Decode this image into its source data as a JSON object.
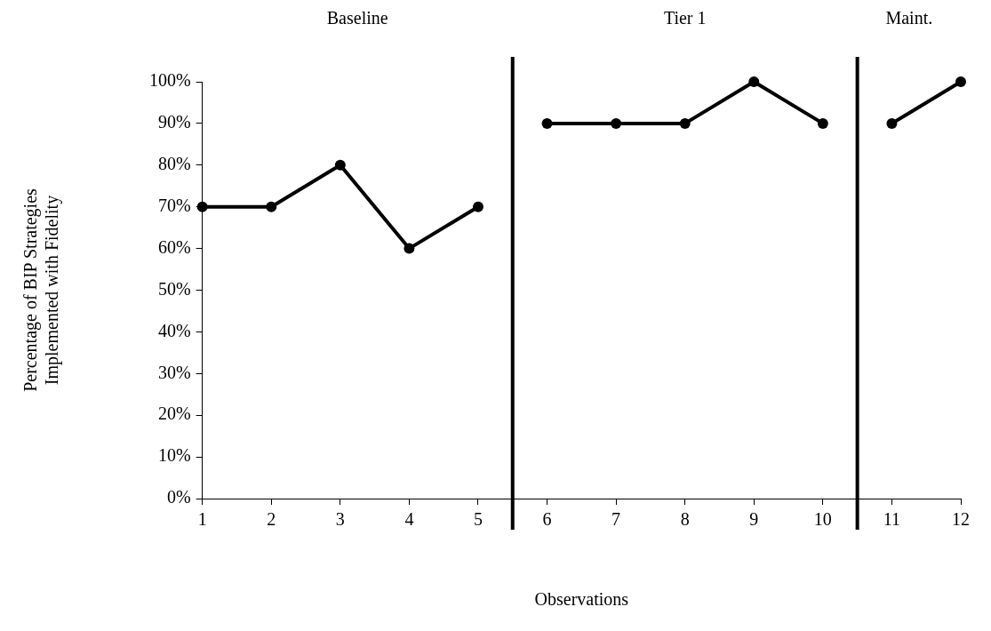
{
  "chart_data": {
    "type": "line",
    "xlabel": "Observations",
    "ylabel": "Percentage of BIP Strategies\nImplemented with Fidelity",
    "xlim": [
      1,
      12
    ],
    "xticks": [
      1,
      2,
      3,
      4,
      5,
      6,
      7,
      8,
      9,
      10,
      11,
      12
    ],
    "ylim": [
      0,
      100
    ],
    "yticks": [
      {
        "value": 0,
        "label": "0%"
      },
      {
        "value": 10,
        "label": "10%"
      },
      {
        "value": 20,
        "label": "20%"
      },
      {
        "value": 30,
        "label": "30%"
      },
      {
        "value": 40,
        "label": "40%"
      },
      {
        "value": 50,
        "label": "50%"
      },
      {
        "value": 60,
        "label": "60%"
      },
      {
        "value": 70,
        "label": "70%"
      },
      {
        "value": 80,
        "label": "80%"
      },
      {
        "value": 90,
        "label": "90%"
      },
      {
        "value": 100,
        "label": "100%"
      }
    ],
    "series": [
      {
        "color": "#000000",
        "x": [
          1,
          2,
          3,
          4,
          5
        ],
        "values": [
          70,
          70,
          80,
          60,
          70
        ]
      },
      {
        "color": "#000000",
        "x": [
          6,
          7,
          8,
          9,
          10
        ],
        "values": [
          90,
          90,
          90,
          100,
          90
        ]
      },
      {
        "color": "#000000",
        "x": [
          11,
          12
        ],
        "values": [
          90,
          100
        ]
      }
    ],
    "ref_lines": [
      {
        "axis": "x",
        "value": 5.5,
        "color": "#000000",
        "line_style": "solid"
      },
      {
        "axis": "x",
        "value": 10.5,
        "color": "#000000",
        "line_style": "solid"
      }
    ],
    "annotations": [
      "Baseline",
      "Tier 1",
      "Maint."
    ],
    "grid": false,
    "legend": false,
    "marker": "circle",
    "line_style": "solid"
  }
}
